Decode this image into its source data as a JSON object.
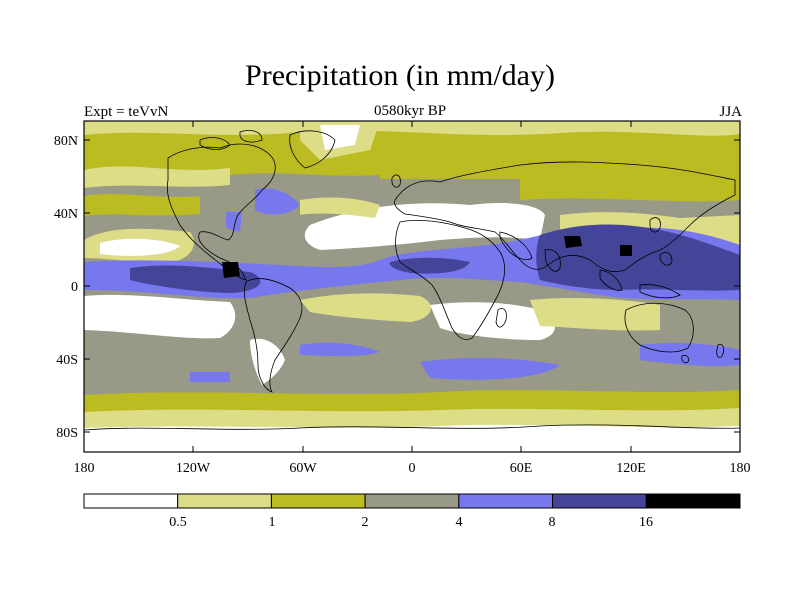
{
  "title": "Precipitation (in mm/day)",
  "subtitle_left": "Expt = teVvN",
  "subtitle_center": "0580kyr BP",
  "subtitle_right": "JJA",
  "y_ticks": [
    "80N",
    "40N",
    "0",
    "40S",
    "80S"
  ],
  "x_ticks": [
    "180",
    "120W",
    "60W",
    "0",
    "60E",
    "120E",
    "180"
  ],
  "colorbar": {
    "labels": [
      "0.5",
      "1",
      "2",
      "4",
      "8",
      "16"
    ],
    "colors": [
      "#ffffff",
      "#dddd88",
      "#bbbb22",
      "#999988",
      "#7777ee",
      "#444499",
      "#000000"
    ]
  }
}
